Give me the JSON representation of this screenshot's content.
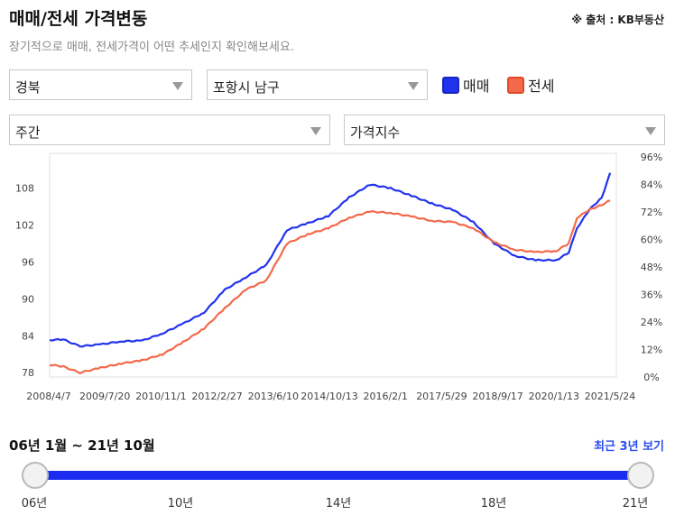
{
  "header": {
    "title": "매매/전세 가격변동",
    "source": "※ 출처 : KB부동산",
    "subtitle": "장기적으로 매매, 전세가격이 어떤 추세인지 확인해보세요."
  },
  "filters": {
    "region": "경북",
    "district": "포항시 남구",
    "period": "주간",
    "index_type": "가격지수"
  },
  "legend": [
    {
      "label": "매매",
      "color": "#2233ee"
    },
    {
      "label": "전세",
      "color": "#f26a4b"
    }
  ],
  "chart_data": {
    "type": "line",
    "title": "",
    "x_tick_labels": [
      "2008/4/7",
      "2009/7/20",
      "2010/11/1",
      "2012/2/27",
      "2013/6/10",
      "2014/10/13",
      "2016/2/1",
      "2017/5/29",
      "2018/9/17",
      "2020/1/13",
      "2021/5/24"
    ],
    "y_left_ticks": [
      78,
      84,
      90,
      96,
      102,
      108
    ],
    "y_right_ticks": [
      "0%",
      "12%",
      "24%",
      "36%",
      "48%",
      "60%",
      "72%",
      "84%",
      "96%"
    ],
    "x": [
      2008.27,
      2008.6,
      2009.0,
      2009.5,
      2010.0,
      2010.5,
      2011.0,
      2011.5,
      2012.0,
      2012.5,
      2013.0,
      2013.5,
      2014.0,
      2014.5,
      2015.0,
      2015.5,
      2016.0,
      2016.5,
      2017.0,
      2017.5,
      2018.0,
      2018.5,
      2019.0,
      2019.5,
      2020.0,
      2020.5,
      2020.8,
      2021.0,
      2021.3,
      2021.6,
      2021.8
    ],
    "series": [
      {
        "name": "매매",
        "color": "#2233ee",
        "values": [
          83.3,
          83.4,
          82.3,
          82.6,
          83.1,
          83.2,
          84.4,
          86.0,
          87.8,
          91.5,
          93.5,
          95.5,
          101.2,
          102.3,
          103.5,
          106.5,
          108.6,
          108.0,
          106.8,
          105.5,
          104.5,
          102.5,
          99.0,
          97.0,
          96.3,
          96.3,
          97.5,
          101.5,
          104.5,
          106.5,
          110.5
        ]
      },
      {
        "name": "전세",
        "color": "#f26a4b",
        "values": [
          79.3,
          79.0,
          78.0,
          78.8,
          79.5,
          80.0,
          81.0,
          83.0,
          85.2,
          88.5,
          91.5,
          93.0,
          99.0,
          100.5,
          101.5,
          103.2,
          104.2,
          104.0,
          103.4,
          102.7,
          102.5,
          101.5,
          99.2,
          98.0,
          97.6,
          97.8,
          99.0,
          103.2,
          104.5,
          105.3,
          106.0
        ]
      }
    ]
  },
  "range": {
    "text": "06년 1월 ~ 21년 10월",
    "recent_button": "최근 3년 보기",
    "year_labels": [
      "06년",
      "10년",
      "14년",
      "18년",
      "21년"
    ]
  }
}
